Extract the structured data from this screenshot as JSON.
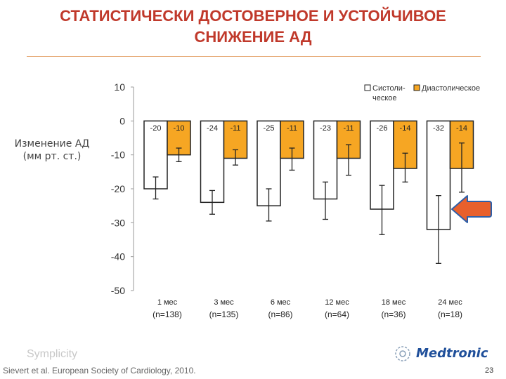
{
  "title_line1": "СТАТИСТИЧЕСКИ ДОСТОВЕРНОЕ И УСТОЙЧИВОЕ",
  "title_line2": "СНИЖЕНИЕ АД",
  "ylabel_line1": "Изменение АД",
  "ylabel_line2": "(мм рт. ст.)",
  "brand": "Symplicity",
  "citation": "Sievert et al. European Society of Cardiology, 2010.",
  "logo_text": "Medtronic",
  "page_number": "23",
  "colors": {
    "title": "#c0392b",
    "systolic": "#ffffff",
    "diastolic": "#f6a623",
    "arrow": "#e8602c",
    "arrow_border": "#2e5fa8"
  },
  "chart_data": {
    "type": "bar",
    "ylim": [
      -50,
      10
    ],
    "yticks": [
      "10",
      "0",
      "-10",
      "-20",
      "-30",
      "-40",
      "-50"
    ],
    "legend_position": "top-right",
    "legend": {
      "systolic_line1": "Систоли-",
      "systolic_line2": "ческое",
      "diastolic": "Диастолическое"
    },
    "categories": [
      "1 мес",
      "3 мес",
      "6 мес",
      "12 мес",
      "18 мес",
      "24 мес"
    ],
    "n_labels": [
      "(n=138)",
      "(n=135)",
      "(n=86)",
      "(n=64)",
      "(n=36)",
      "(n=18)"
    ],
    "series": [
      {
        "name": "Систолическое",
        "values": [
          -20,
          -24,
          -25,
          -23,
          -26,
          -32
        ],
        "labels": [
          "-20",
          "-24",
          "-25",
          "-23",
          "-26",
          "-32"
        ],
        "err_low": [
          -23,
          -27.5,
          -29.5,
          -29,
          -33.5,
          -42
        ],
        "err_high": [
          -16.5,
          -20.5,
          -20,
          -18,
          -19,
          -22
        ]
      },
      {
        "name": "Диастолическое",
        "values": [
          -10,
          -11,
          -11,
          -11,
          -14,
          -14
        ],
        "labels": [
          "-10",
          "-11",
          "-11",
          "-11",
          "-14",
          "-14"
        ],
        "err_low": [
          -12,
          -13,
          -14.5,
          -16,
          -18,
          -21
        ],
        "err_high": [
          -8,
          -8.5,
          -8,
          -7,
          -9.5,
          -6.5
        ]
      }
    ]
  }
}
